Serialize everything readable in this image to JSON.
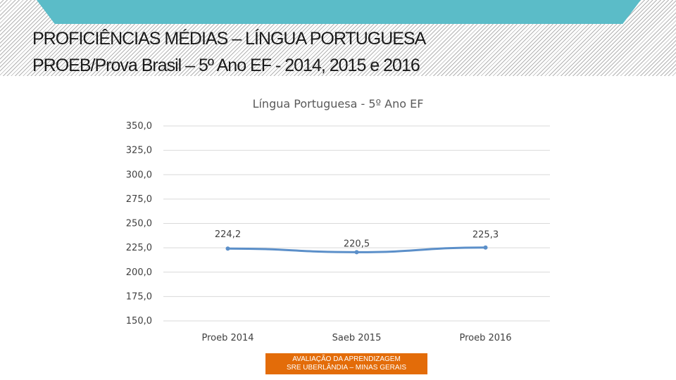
{
  "header": {
    "title_line1": "PROFICIÊNCIAS MÉDIAS – LÍNGUA PORTUGUESA",
    "title_line2": "PROEB/Prova Brasil – 5º Ano EF - 2014, 2015 e 2016",
    "banner_color": "#5bbcc8"
  },
  "chart_data": {
    "type": "line",
    "title": "Língua Portuguesa - 5º Ano EF",
    "categories": [
      "Proeb 2014",
      "Saeb 2015",
      "Proeb 2016"
    ],
    "series": [
      {
        "values": [
          224.2,
          220.5,
          225.3
        ],
        "color": "#5b8fc9"
      }
    ],
    "data_labels": [
      "224,2",
      "220,5",
      "225,3"
    ],
    "ylim": [
      150,
      350
    ],
    "yticks": [
      "150,0",
      "175,0",
      "200,0",
      "225,0",
      "250,0",
      "275,0",
      "300,0",
      "325,0",
      "350,0"
    ],
    "ytick_values": [
      150,
      175,
      200,
      225,
      250,
      275,
      300,
      325,
      350
    ],
    "grid": true,
    "legend": "none"
  },
  "footer": {
    "line1": "AVALIAÇÃO DA APRENDIZAGEM",
    "line2": "SRE UBERLÂNDIA – MINAS GERAIS",
    "color": "#e36c09"
  }
}
